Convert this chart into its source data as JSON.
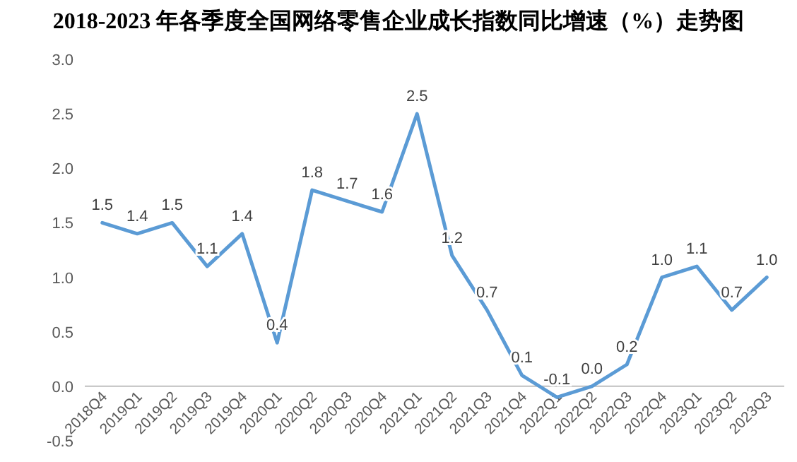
{
  "chart_data": {
    "type": "line",
    "title": "2018-2023 年各季度全国网络零售企业成长指数同比增速（%）走势图",
    "categories": [
      "2018Q4",
      "2019Q1",
      "2019Q2",
      "2019Q3",
      "2019Q4",
      "2020Q1",
      "2020Q2",
      "2020Q3",
      "2020Q4",
      "2021Q1",
      "2021Q2",
      "2021Q3",
      "2021Q4",
      "2022Q1",
      "2022Q2",
      "2022Q3",
      "2022Q4",
      "2023Q1",
      "2023Q2",
      "2023Q3"
    ],
    "series": [
      {
        "color": "#5b9bd5",
        "values": [
          1.5,
          1.4,
          1.5,
          1.1,
          1.4,
          0.4,
          1.8,
          1.7,
          1.6,
          2.5,
          1.2,
          0.7,
          0.1,
          -0.1,
          0.0,
          0.2,
          1.0,
          1.1,
          0.7,
          1.0
        ],
        "value_labels": [
          "1.5",
          "1.4",
          "1.5",
          "1.1",
          "1.4",
          "0.4",
          "1.8",
          "1.7",
          "1.6",
          "2.5",
          "1.2",
          "0.7",
          "0.1",
          "-0.1",
          "0.0",
          "0.2",
          "1.0",
          "1.1",
          "0.7",
          "1.0"
        ]
      }
    ],
    "ylim": [
      -0.5,
      3.0
    ],
    "yticks": [
      {
        "value": -0.5,
        "label": "-0.5"
      },
      {
        "value": 0,
        "label": "0.0"
      },
      {
        "value": 0.5,
        "label": "0.5"
      },
      {
        "value": 1,
        "label": "1.0"
      },
      {
        "value": 1.5,
        "label": "1.5"
      },
      {
        "value": 2,
        "label": "2.0"
      },
      {
        "value": 2.5,
        "label": "2.5"
      },
      {
        "value": 3,
        "label": "3.0"
      }
    ],
    "grid": false,
    "marker": "none",
    "line_style": "solid"
  }
}
